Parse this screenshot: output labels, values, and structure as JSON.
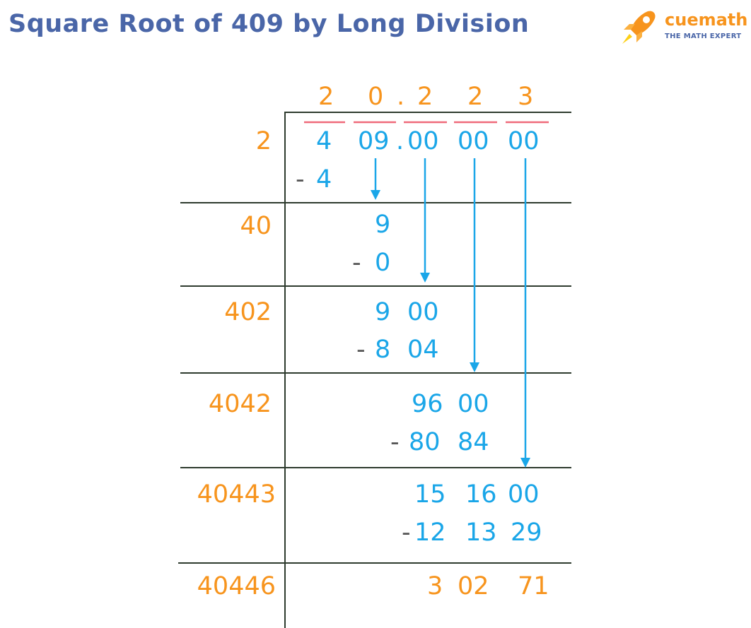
{
  "title": "Square Root of 409 by Long Division",
  "logo": {
    "name": "cuemath",
    "tagline": "THE MATH EXPERT"
  },
  "colors": {
    "title": "#4a66a8",
    "divisor": "#f7941d",
    "quotient": "#f7941d",
    "dividend": "#1aa6e8",
    "arrow": "#1aa6e8",
    "pair_bar": "#ef6a7a",
    "line": "#2e3b2e",
    "minus": "#555555",
    "remainder": "#f7941d"
  },
  "quotient": [
    "2",
    "0",
    ".",
    "2",
    "2",
    "3"
  ],
  "dividend": {
    "pairs": [
      "4",
      "09",
      ".",
      "00",
      "00",
      "00"
    ]
  },
  "divisors": [
    "2",
    "40",
    "402",
    "4042",
    "40443",
    "40446"
  ],
  "steps": [
    {
      "value": [
        "4"
      ],
      "minus": "-",
      "subtract": [
        "4"
      ]
    },
    {
      "value": [
        "9"
      ],
      "minus": "-",
      "subtract": [
        "0"
      ]
    },
    {
      "value": [
        "9",
        "00"
      ],
      "minus": "-",
      "subtract": [
        "8",
        "04"
      ]
    },
    {
      "value": [
        "96",
        "00"
      ],
      "minus": "-",
      "subtract": [
        "80",
        "84"
      ]
    },
    {
      "value": [
        "15",
        "16",
        "00"
      ],
      "minus": "-",
      "subtract": [
        "12",
        "13",
        "29"
      ]
    }
  ],
  "remainder": [
    "3",
    "02",
    "71"
  ]
}
